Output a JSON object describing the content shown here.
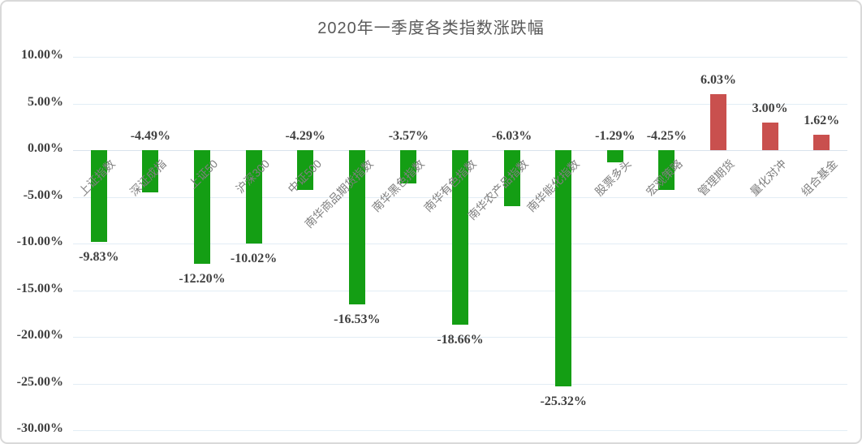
{
  "chart_data": {
    "type": "bar",
    "title": "2020年一季度各类指数涨跌幅",
    "categories": [
      "上证指数",
      "深证成指",
      "上证50",
      "沪深300",
      "中证500",
      "南华商品期货指数",
      "南华黑色指数",
      "南华有色指数",
      "南华农产品指数",
      "南华能化指数",
      "股票多头",
      "宏观策略",
      "管理期货",
      "量化对冲",
      "组合基金"
    ],
    "values": [
      -9.83,
      -4.49,
      -12.2,
      -10.02,
      -4.29,
      -16.53,
      -3.57,
      -18.66,
      -6.03,
      -25.32,
      -1.29,
      -4.25,
      6.03,
      3.0,
      1.62
    ],
    "value_labels": [
      "-9.83%",
      "-4.49%",
      "-12.20%",
      "-10.02%",
      "-4.29%",
      "-16.53%",
      "-3.57%",
      "-18.66%",
      "-6.03%",
      "-25.32%",
      "-1.29%",
      "-4.25%",
      "6.03%",
      "3.00%",
      "1.62%"
    ],
    "y_ticks": [
      "10.00%",
      "5.00%",
      "0.00%",
      "-5.00%",
      "-10.00%",
      "-15.00%",
      "-20.00%",
      "-25.00%",
      "-30.00%"
    ],
    "y_tick_values": [
      10,
      5,
      0,
      -5,
      -10,
      -15,
      -20,
      -25,
      -30
    ],
    "ylim": [
      -30,
      10
    ],
    "xlabel": "",
    "ylabel": "",
    "grid": true,
    "legend": "none",
    "colors": {
      "positive_bar": "#c9504e",
      "negative_bar": "#149e14",
      "title_text": "#595959",
      "axis_text": "#404040",
      "category_text": "#7f7f7f",
      "gridline": "#e2edf5"
    }
  }
}
